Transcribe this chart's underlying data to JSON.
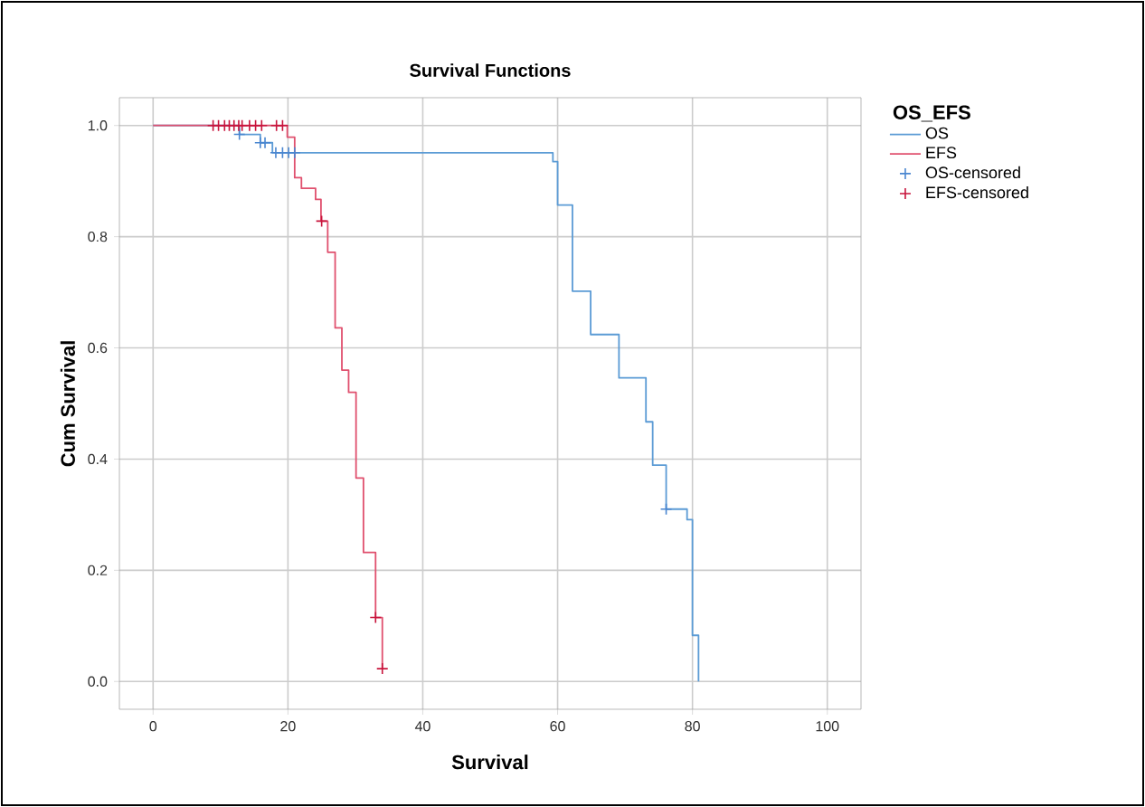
{
  "chart_data": {
    "type": "step",
    "title": "Survival Functions",
    "xlabel": "Survival",
    "ylabel": "Cum Survival",
    "legend_title": "OS_EFS",
    "xlim": [
      -5,
      105
    ],
    "ylim": [
      -0.05,
      1.05
    ],
    "xticks": [
      0,
      20,
      40,
      60,
      80,
      100
    ],
    "yticks": [
      {
        "value": 0,
        "label": "0.0"
      },
      {
        "value": 0.2,
        "label": "0.2"
      },
      {
        "value": 0.4,
        "label": "0.4"
      },
      {
        "value": 0.6,
        "label": "0.6"
      },
      {
        "value": 0.8,
        "label": "0.8"
      },
      {
        "value": 1,
        "label": "1.0"
      }
    ],
    "grid": true,
    "legend": "right",
    "series": [
      {
        "name": "OS",
        "color": "#5b9bd5",
        "x": [
          0,
          12.8,
          15.9,
          17.7,
          59.3,
          60.0,
          62.2,
          64.9,
          69.1,
          73.1,
          74.1,
          76.1,
          79.2,
          80.0,
          80.9
        ],
        "values": [
          1,
          0.984,
          0.969,
          0.951,
          0.935,
          0.857,
          0.702,
          0.624,
          0.546,
          0.467,
          0.389,
          0.31,
          0.291,
          0.083,
          0
        ]
      },
      {
        "name": "EFS",
        "color": "#e0506e",
        "x": [
          0,
          19.9,
          21.0,
          22.0,
          24.1,
          24.9,
          25.9,
          27.0,
          28.0,
          29.0,
          30.1,
          31.2,
          33.0,
          34.0
        ],
        "values": [
          1,
          0.979,
          0.906,
          0.887,
          0.867,
          0.828,
          0.772,
          0.636,
          0.56,
          0.52,
          0.366,
          0.232,
          0.115,
          0.023
        ]
      },
      {
        "name": "OS-censored",
        "type": "scatter",
        "marker": "cross",
        "color": "#4a86d0",
        "x": [
          12.8,
          15.9,
          16.6,
          18.2,
          19.2,
          20.1,
          21.0,
          76.1
        ],
        "values": [
          0.984,
          0.969,
          0.969,
          0.951,
          0.951,
          0.951,
          0.951,
          0.31
        ]
      },
      {
        "name": "EFS-censored",
        "type": "scatter",
        "marker": "cross",
        "color": "#c8143c",
        "x": [
          8.9,
          9.7,
          10.6,
          11.3,
          12.0,
          12.7,
          13.2,
          14.3,
          15.2,
          16.1,
          18.3,
          19.2,
          25.0,
          33.0,
          34.0
        ],
        "values": [
          1,
          1,
          1,
          1,
          1,
          1,
          1,
          1,
          1,
          1,
          1,
          1,
          0.828,
          0.115,
          0.023
        ]
      }
    ]
  }
}
